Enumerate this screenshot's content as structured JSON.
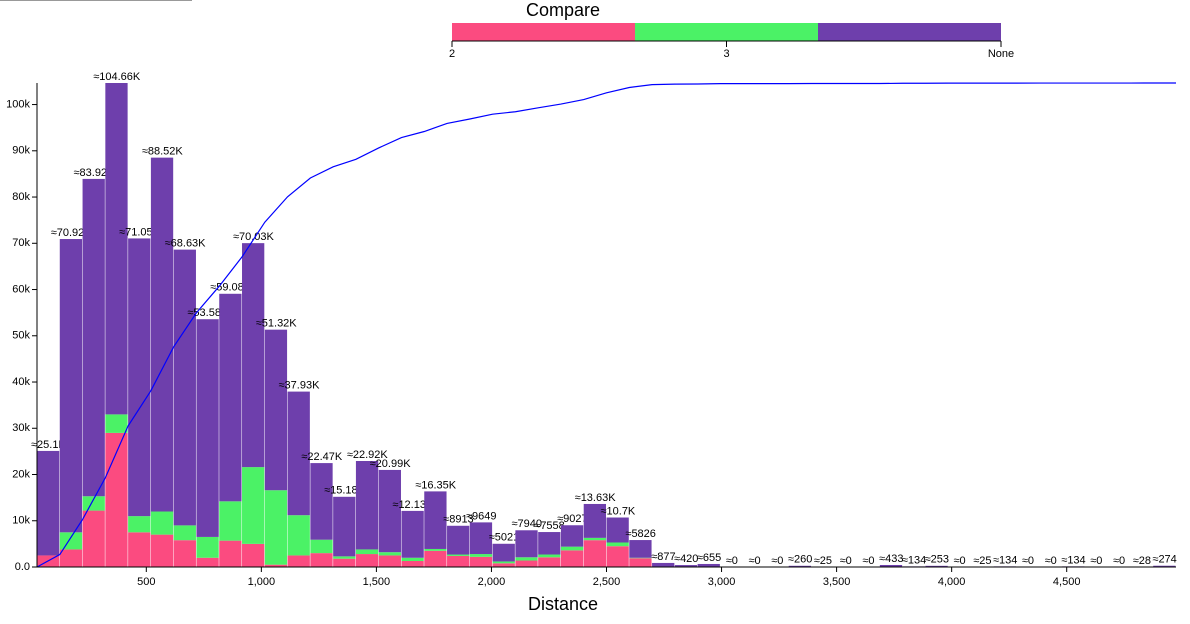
{
  "chart_data": {
    "type": "histogram",
    "x_label": "Distance",
    "legend_title": "Compare",
    "bins": [
      25,
      124,
      223,
      322,
      421,
      520,
      619,
      718,
      817,
      916,
      1015,
      1114,
      1213,
      1312,
      1411,
      1510,
      1609,
      1708,
      1807,
      1906,
      2005,
      2104,
      2203,
      2302,
      2401,
      2500,
      2599,
      2698,
      2797,
      2896,
      2995,
      3094,
      3193,
      3292,
      3391,
      3490,
      3589,
      3688,
      3787,
      3886,
      3985,
      4084,
      4183,
      4282,
      4381,
      4480,
      4579,
      4678,
      4777,
      4876,
      4975
    ],
    "series": [
      {
        "name": "2",
        "color": "#fb4b80",
        "values": [
          2500,
          3800,
          12200,
          29000,
          7500,
          7000,
          5800,
          2000,
          5700,
          5000,
          500,
          2500,
          3000,
          1800,
          2800,
          2500,
          1300,
          3500,
          2400,
          2200,
          800,
          1400,
          2100,
          3600,
          5800,
          4500,
          1900,
          0,
          0,
          0,
          0,
          0,
          0,
          0,
          0,
          0,
          0,
          0,
          0,
          0,
          0,
          0,
          0,
          0,
          0,
          0,
          0,
          0,
          0,
          0
        ]
      },
      {
        "name": "3",
        "color": "#4bf266",
        "values": [
          0,
          3700,
          3100,
          4000,
          3500,
          5000,
          3200,
          4500,
          8500,
          16600,
          16100,
          8700,
          2900,
          500,
          1000,
          700,
          700,
          400,
          300,
          600,
          400,
          700,
          600,
          800,
          500,
          800,
          100,
          0,
          0,
          0,
          0,
          0,
          0,
          0,
          0,
          0,
          0,
          0,
          0,
          0,
          0,
          0,
          0,
          0,
          0,
          0,
          0,
          0,
          0,
          0
        ]
      },
      {
        "name": "None",
        "color": "#6e3fac",
        "values": [
          22600,
          63420,
          68620,
          71660,
          60050,
          76520,
          59630,
          47080,
          44880,
          48430,
          34720,
          26730,
          16570,
          12880,
          19120,
          17790,
          10130,
          12450,
          6213,
          6849,
          3821,
          5840,
          4858,
          4627,
          7330,
          5400,
          3826,
          877,
          420,
          655,
          0,
          0,
          0,
          260,
          25,
          0,
          0,
          433,
          134,
          253,
          0,
          25,
          134,
          0,
          0,
          134,
          0,
          0,
          28,
          274
        ]
      }
    ],
    "bar_totals": {
      "values": [
        25100,
        70920,
        83920,
        104660,
        71050,
        88520,
        68630,
        53580,
        59080,
        70030,
        51320,
        37930,
        22470,
        15180,
        22920,
        20990,
        12130,
        16350,
        8913,
        9649,
        5021,
        7940,
        7558,
        9027,
        13630,
        10700,
        5826,
        877,
        420,
        655,
        0,
        0,
        0,
        260,
        25,
        0,
        0,
        433,
        134,
        253,
        0,
        25,
        134,
        0,
        0,
        134,
        0,
        0,
        28,
        274
      ],
      "value_labels": [
        "≈25.1K",
        "≈70.92K",
        "≈83.92K",
        "≈104.66K",
        "≈71.05K",
        "≈88.52K",
        "≈68.63K",
        "≈53.58K",
        "≈59.08K",
        "≈70.03K",
        "≈51.32K",
        "≈37.93K",
        "≈22.47K",
        "≈15.18K",
        "≈22.92K",
        "≈20.99K",
        "≈12.13K",
        "≈16.35K",
        "≈8913",
        "≈9649",
        "≈5021",
        "≈7940",
        "≈7558",
        "≈9027",
        "≈13.63K",
        "≈10.7K",
        "≈5826",
        "≈877",
        "≈420",
        "≈655",
        "≈0",
        "≈0",
        "≈0",
        "≈260",
        "≈25",
        "≈0",
        "≈0",
        "≈433",
        "≈134",
        "≈253",
        "≈0",
        "≈25",
        "≈134",
        "≈0",
        "≈0",
        "≈134",
        "≈0",
        "≈0",
        "≈28",
        "≈274"
      ]
    },
    "cumulative": {
      "color": "#0000ff",
      "values": [
        0,
        2690,
        10290,
        19290,
        30510,
        38130,
        47620,
        54970,
        60720,
        67050,
        74560,
        80060,
        84120,
        86530,
        88160,
        90620,
        92870,
        94170,
        95920,
        96880,
        97910,
        98450,
        99300,
        100110,
        101080,
        102540,
        103690,
        104310,
        104410,
        104450,
        104520,
        104520,
        104520,
        104520,
        104550,
        104550,
        104550,
        104550,
        104600,
        104610,
        104640,
        104640,
        104640,
        104640,
        104650,
        104650,
        104650,
        104650,
        104650,
        104660,
        104660
      ]
    },
    "xlim": [
      25,
      4975
    ],
    "ylim": [
      0,
      104660
    ],
    "xticks": [
      500,
      {
        "value": 1000,
        "label": "1,000"
      },
      {
        "value": 1500,
        "label": "1,500"
      },
      {
        "value": 2000,
        "label": "2,000"
      },
      {
        "value": 2500,
        "label": "2,500"
      },
      {
        "value": 3000,
        "label": "3,000"
      },
      {
        "value": 3500,
        "label": "3,500"
      },
      {
        "value": 4000,
        "label": "4,000"
      },
      {
        "value": 4500,
        "label": "4,500"
      }
    ],
    "yticks": [
      {
        "value": 0,
        "label": "0.0"
      },
      {
        "value": 10000,
        "label": "10k"
      },
      {
        "value": 20000,
        "label": "20k"
      },
      {
        "value": 30000,
        "label": "30k"
      },
      {
        "value": 40000,
        "label": "40k"
      },
      {
        "value": 50000,
        "label": "50k"
      },
      {
        "value": 60000,
        "label": "60k"
      },
      {
        "value": 70000,
        "label": "70k"
      },
      {
        "value": 80000,
        "label": "80k"
      },
      {
        "value": 90000,
        "label": "90k"
      },
      {
        "value": 100000,
        "label": "100k"
      }
    ]
  }
}
